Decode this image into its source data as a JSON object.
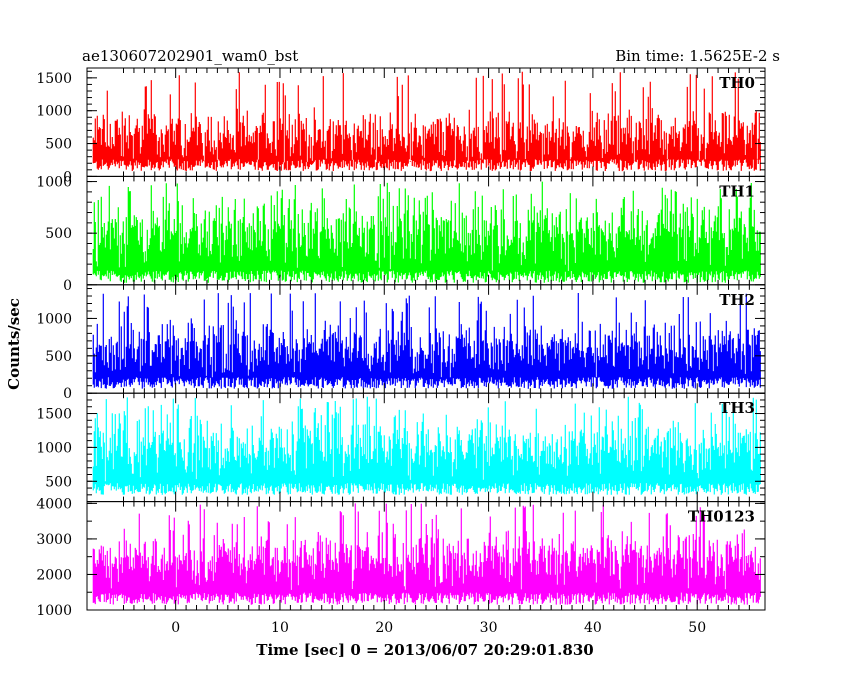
{
  "header": {
    "title": "ae130607202901_wam0_bst",
    "bin_time": "Bin time: 1.5625E-2 s"
  },
  "axes": {
    "ylabel": "Counts/sec",
    "xlabel": "Time [sec] 0 = 2013/06/07 20:29:01.830"
  },
  "chart_data": {
    "type": "line",
    "x_range": [
      -8.5,
      56.5
    ],
    "x_ticks": [
      0,
      10,
      20,
      30,
      40,
      50
    ],
    "data_x_range": [
      -7.9,
      56.1
    ],
    "panels": [
      {
        "name": "TH0",
        "color": "#ff0000",
        "ylim": [
          0,
          1650
        ],
        "y_ticks": [
          0,
          500,
          1000,
          1500
        ],
        "mean": 620,
        "noise": 210,
        "spike_max": 1600,
        "floor": 80
      },
      {
        "name": "TH1",
        "color": "#00ff00",
        "ylim": [
          0,
          1050
        ],
        "y_ticks": [
          0,
          500,
          1000
        ],
        "mean": 520,
        "noise": 180,
        "spike_max": 1000,
        "floor": 20
      },
      {
        "name": "TH2",
        "color": "#0000ff",
        "ylim": [
          0,
          1450
        ],
        "y_ticks": [
          0,
          500,
          1000
        ],
        "mean": 600,
        "noise": 190,
        "spike_max": 1360,
        "floor": 60
      },
      {
        "name": "TH3",
        "color": "#00ffff",
        "ylim": [
          200,
          1800
        ],
        "y_ticks": [
          500,
          1000,
          1500
        ],
        "mean": 1000,
        "noise": 240,
        "spike_max": 1750,
        "floor": 300
      },
      {
        "name": "TH0123",
        "color": "#ff00ff",
        "ylim": [
          1000,
          4050
        ],
        "y_ticks": [
          1000,
          2000,
          3000,
          4000
        ],
        "mean": 2450,
        "noise": 420,
        "spike_max": 4000,
        "floor": 1150
      }
    ]
  }
}
